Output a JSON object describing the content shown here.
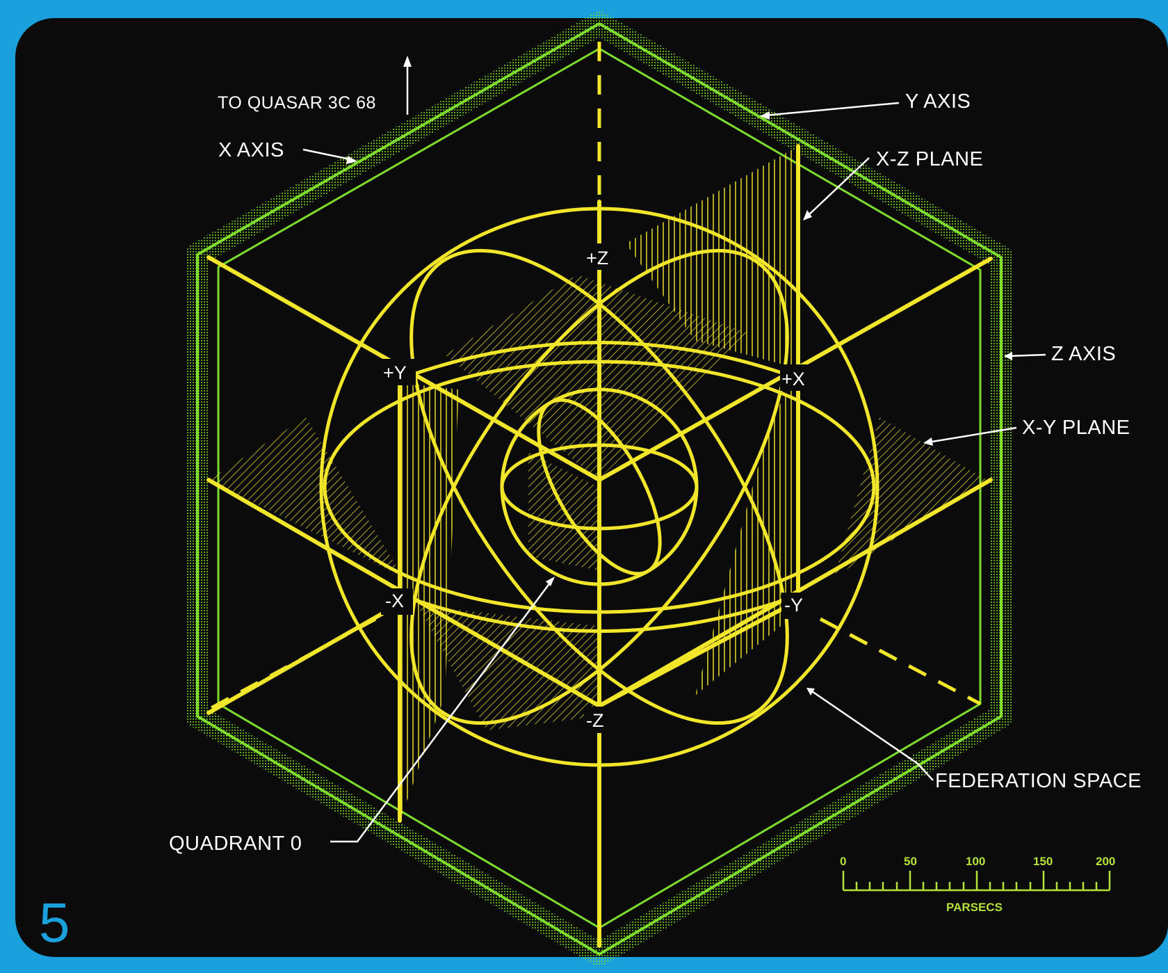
{
  "labels": {
    "to_quasar": "TO QUASAR 3C 68",
    "x_axis": "X AXIS",
    "y_axis": "Y AXIS",
    "xz_plane": "X-Z PLANE",
    "z_axis": "Z AXIS",
    "xy_plane": "X-Y PLANE",
    "federation_space": "FEDERATION SPACE",
    "quadrant": "QUADRANT 0"
  },
  "nodes": {
    "plus_z": "+Z",
    "plus_y": "+Y",
    "plus_x": "+X",
    "minus_x": "-X",
    "minus_y": "-Y",
    "minus_z": "-Z"
  },
  "scale": {
    "ticks": [
      "0",
      "50",
      "100",
      "150",
      "200"
    ],
    "unit": "PARSECS"
  },
  "page_number": "5",
  "colors": {
    "frame": "#1aa0db",
    "background": "#0b0b0c",
    "cube": "#7ddc2c",
    "geometry": "#f2e62a",
    "label": "#ffffff",
    "scale": "#b6e33a"
  }
}
